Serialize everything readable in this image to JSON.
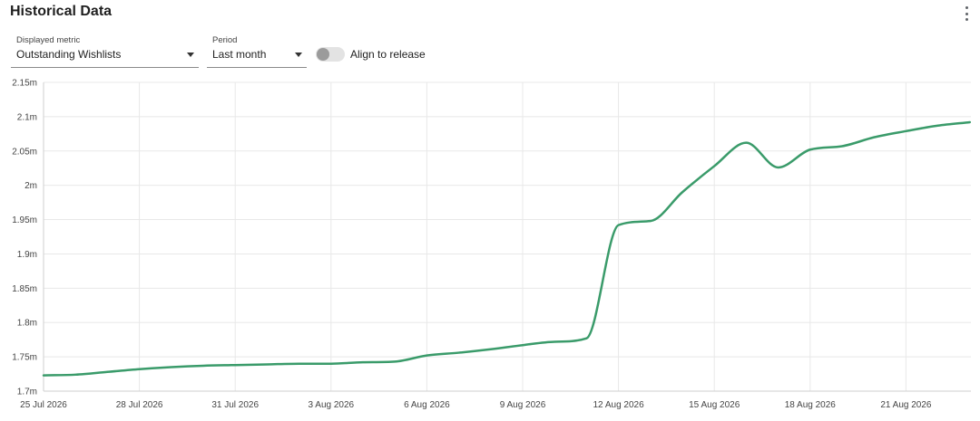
{
  "header": {
    "title": "Historical Data"
  },
  "controls": {
    "metric": {
      "label": "Displayed metric",
      "value": "Outstanding Wishlists"
    },
    "period": {
      "label": "Period",
      "value": "Last month"
    },
    "align_toggle": {
      "label": "Align to release",
      "checked": false
    }
  },
  "colors": {
    "line": "#3a9b6a",
    "grid": "#e8e8e8"
  },
  "chart_data": {
    "type": "line",
    "series": [
      {
        "x": [
          "25 Jul 2026",
          "26 Jul 2026",
          "27 Jul 2026",
          "28 Jul 2026",
          "29 Jul 2026",
          "30 Jul 2026",
          "31 Jul 2026",
          "1 Aug 2026",
          "2 Aug 2026",
          "3 Aug 2026",
          "4 Aug 2026",
          "5 Aug 2026",
          "6 Aug 2026",
          "7 Aug 2026",
          "8 Aug 2026",
          "9 Aug 2026",
          "10 Aug 2026",
          "11 Aug 2026",
          "12 Aug 2026",
          "13 Aug 2026",
          "14 Aug 2026",
          "15 Aug 2026",
          "16 Aug 2026",
          "17 Aug 2026",
          "18 Aug 2026",
          "19 Aug 2026",
          "20 Aug 2026",
          "21 Aug 2026",
          "22 Aug 2026",
          "23 Aug 2026"
        ],
        "values": [
          1.723,
          1.724,
          1.728,
          1.732,
          1.735,
          1.737,
          1.738,
          1.739,
          1.74,
          1.74,
          1.742,
          1.743,
          1.752,
          1.756,
          1.761,
          1.767,
          1.772,
          1.777,
          1.942,
          1.948,
          1.99,
          2.028,
          2.062,
          2.026,
          2.052,
          2.057,
          2.07,
          2.079,
          2.087,
          2.092
        ]
      }
    ],
    "y_ticks": [
      "1.7m",
      "1.75m",
      "1.8m",
      "1.85m",
      "1.9m",
      "1.95m",
      "2m",
      "2.05m",
      "2.1m",
      "2.15m"
    ],
    "ylim": [
      1.7,
      2.15
    ],
    "x_ticks": [
      "25 Jul 2026",
      "28 Jul 2026",
      "31 Jul 2026",
      "3 Aug 2026",
      "6 Aug 2026",
      "9 Aug 2026",
      "12 Aug 2026",
      "15 Aug 2026",
      "18 Aug 2026",
      "21 Aug 2026"
    ],
    "xlim": [
      "25 Jul 2026",
      "23 Aug 2026"
    ],
    "grid": true
  }
}
